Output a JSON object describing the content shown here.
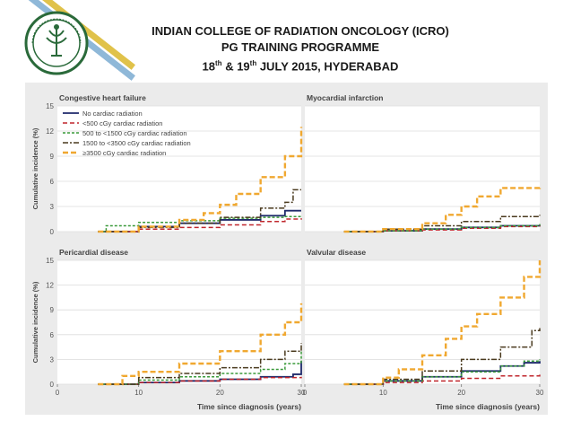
{
  "header": {
    "line1": "INDIAN COLLEGE OF RADIATION ONCOLOGY (ICRO)",
    "line2": "PG TRAINING PROGRAMME",
    "line3_day1": "18",
    "line3_sup1": "th",
    "line3_amp": " & 19",
    "line3_sup2": "th",
    "line3_rest": " JULY 2015, HYDERABAD"
  },
  "colors": {
    "no_cardiac": "#1f2a6b",
    "lt500": "#c0272d",
    "c500_1500": "#3a9a3a",
    "c1500_3500": "#4a3a1e",
    "ge3500": "#f0a830",
    "panel_bg": "#ffffff",
    "figure_bg": "#ebebeb",
    "stripes": [
      "#e0c24a",
      "#8fb8d8"
    ]
  },
  "chart_data": [
    {
      "type": "line",
      "title": "Congestive heart failure",
      "ylabel": "Cumulative incidence (%)",
      "xlabel": "",
      "ylim": [
        0,
        15
      ],
      "xlim": [
        0,
        30
      ],
      "yticks": [
        "0",
        "3",
        "6",
        "9",
        "12",
        "15"
      ],
      "xticks": [],
      "legend_position": "top-left",
      "series": [
        {
          "name": "No cardiac radiation",
          "x": [
            5,
            10,
            15,
            20,
            25,
            28,
            30
          ],
          "y": [
            0,
            0.6,
            1.0,
            1.4,
            1.9,
            2.5,
            2.5
          ]
        },
        {
          "name": "<500 cGy cardiac radiation",
          "x": [
            5,
            10,
            15,
            20,
            25,
            28,
            30
          ],
          "y": [
            0,
            0.3,
            0.5,
            0.8,
            1.2,
            1.5,
            1.6
          ]
        },
        {
          "name": "500 to <1500 cGy cardiac radiation",
          "x": [
            5,
            6,
            10,
            15,
            20,
            25,
            28,
            30
          ],
          "y": [
            0,
            0.7,
            1.1,
            1.3,
            1.6,
            1.7,
            1.8,
            1.8
          ]
        },
        {
          "name": "1500 to <3500 cGy cardiac radiation",
          "x": [
            5,
            10,
            15,
            20,
            25,
            28,
            29,
            30
          ],
          "y": [
            0,
            0.5,
            1.0,
            1.7,
            2.8,
            3.5,
            5.0,
            5.0
          ]
        },
        {
          "name": "≥3500 cGy cardiac radiation",
          "x": [
            5,
            10,
            15,
            18,
            20,
            22,
            25,
            28,
            30
          ],
          "y": [
            0,
            0.6,
            1.4,
            2.2,
            3.2,
            4.5,
            6.5,
            9.0,
            12.5
          ]
        }
      ]
    },
    {
      "type": "line",
      "title": "Myocardial infarction",
      "ylabel": "",
      "xlabel": "",
      "ylim": [
        0,
        15
      ],
      "xlim": [
        0,
        30
      ],
      "yticks": [],
      "xticks": [],
      "legend_position": "none",
      "series": [
        {
          "name": "No cardiac radiation",
          "x": [
            5,
            10,
            15,
            20,
            25,
            30
          ],
          "y": [
            0,
            0.1,
            0.3,
            0.5,
            0.7,
            0.8
          ]
        },
        {
          "name": "<500 cGy cardiac radiation",
          "x": [
            5,
            10,
            15,
            20,
            25,
            30
          ],
          "y": [
            0,
            0.1,
            0.2,
            0.4,
            0.6,
            0.7
          ]
        },
        {
          "name": "500 to <1500 cGy cardiac radiation",
          "x": [
            5,
            10,
            15,
            20,
            25,
            30
          ],
          "y": [
            0,
            0.1,
            0.3,
            0.5,
            0.7,
            0.9
          ]
        },
        {
          "name": "1500 to <3500 cGy cardiac radiation",
          "x": [
            5,
            10,
            15,
            20,
            25,
            30
          ],
          "y": [
            0,
            0.3,
            0.7,
            1.2,
            1.8,
            2.0
          ]
        },
        {
          "name": "≥3500 cGy cardiac radiation",
          "x": [
            5,
            10,
            15,
            18,
            20,
            22,
            25,
            30
          ],
          "y": [
            0,
            0.3,
            1.0,
            2.0,
            3.0,
            4.2,
            5.2,
            5.4
          ]
        }
      ]
    },
    {
      "type": "line",
      "title": "Pericardial disease",
      "ylabel": "Cumulative incidence (%)",
      "xlabel": "",
      "ylim": [
        0,
        15
      ],
      "xlim": [
        0,
        30
      ],
      "yticks": [
        "0",
        "3",
        "6",
        "9",
        "12",
        "15"
      ],
      "xticks": [
        "0",
        "10",
        "20",
        "30"
      ],
      "legend_position": "none",
      "series": [
        {
          "name": "No cardiac radiation",
          "x": [
            5,
            10,
            15,
            20,
            25,
            29,
            30
          ],
          "y": [
            0,
            0.2,
            0.4,
            0.6,
            0.9,
            1.2,
            2.8
          ]
        },
        {
          "name": "<500 cGy cardiac radiation",
          "x": [
            5,
            10,
            15,
            20,
            25,
            30
          ],
          "y": [
            0,
            0.2,
            0.4,
            0.6,
            0.8,
            0.9
          ]
        },
        {
          "name": "500 to <1500 cGy cardiac radiation",
          "x": [
            5,
            10,
            15,
            20,
            25,
            28,
            30
          ],
          "y": [
            0,
            0.5,
            0.9,
            1.3,
            1.8,
            2.5,
            4.0
          ]
        },
        {
          "name": "1500 to <3500 cGy cardiac radiation",
          "x": [
            5,
            10,
            15,
            20,
            25,
            28,
            30
          ],
          "y": [
            0,
            0.8,
            1.3,
            2.0,
            3.0,
            4.0,
            5.0
          ]
        },
        {
          "name": "≥3500 cGy cardiac radiation",
          "x": [
            5,
            8,
            10,
            15,
            20,
            25,
            28,
            30
          ],
          "y": [
            0,
            1.0,
            1.5,
            2.5,
            4.0,
            6.0,
            7.5,
            9.8
          ]
        }
      ]
    },
    {
      "type": "line",
      "title": "Valvular disease",
      "ylabel": "",
      "xlabel": "Time since diagnosis (years)",
      "ylim": [
        0,
        15
      ],
      "xlim": [
        0,
        30
      ],
      "yticks": [],
      "xticks": [
        "0",
        "10",
        "20",
        "30"
      ],
      "legend_position": "none",
      "series": [
        {
          "name": "No cardiac radiation",
          "x": [
            5,
            10,
            15,
            20,
            25,
            28,
            30
          ],
          "y": [
            0,
            0.4,
            0.9,
            1.6,
            2.2,
            2.6,
            2.8
          ]
        },
        {
          "name": "<500 cGy cardiac radiation",
          "x": [
            5,
            10,
            15,
            20,
            25,
            30
          ],
          "y": [
            0,
            0.2,
            0.4,
            0.7,
            1.0,
            1.2
          ]
        },
        {
          "name": "500 to <1500 cGy cardiac radiation",
          "x": [
            5,
            10,
            15,
            20,
            25,
            28,
            30
          ],
          "y": [
            0,
            0.4,
            0.9,
            1.5,
            2.2,
            2.8,
            3.0
          ]
        },
        {
          "name": "1500 to <3500 cGy cardiac radiation",
          "x": [
            5,
            10,
            15,
            20,
            25,
            29,
            30
          ],
          "y": [
            0,
            0.6,
            1.6,
            3.0,
            4.5,
            6.5,
            6.8
          ]
        },
        {
          "name": "≥3500 cGy cardiac radiation",
          "x": [
            5,
            10,
            12,
            15,
            18,
            20,
            22,
            25,
            28,
            30
          ],
          "y": [
            0,
            0.8,
            1.8,
            3.5,
            5.5,
            7.0,
            8.5,
            10.5,
            13.0,
            15.0
          ]
        }
      ]
    }
  ],
  "figure_xlabel_left": "Time since diagnosis (years)"
}
